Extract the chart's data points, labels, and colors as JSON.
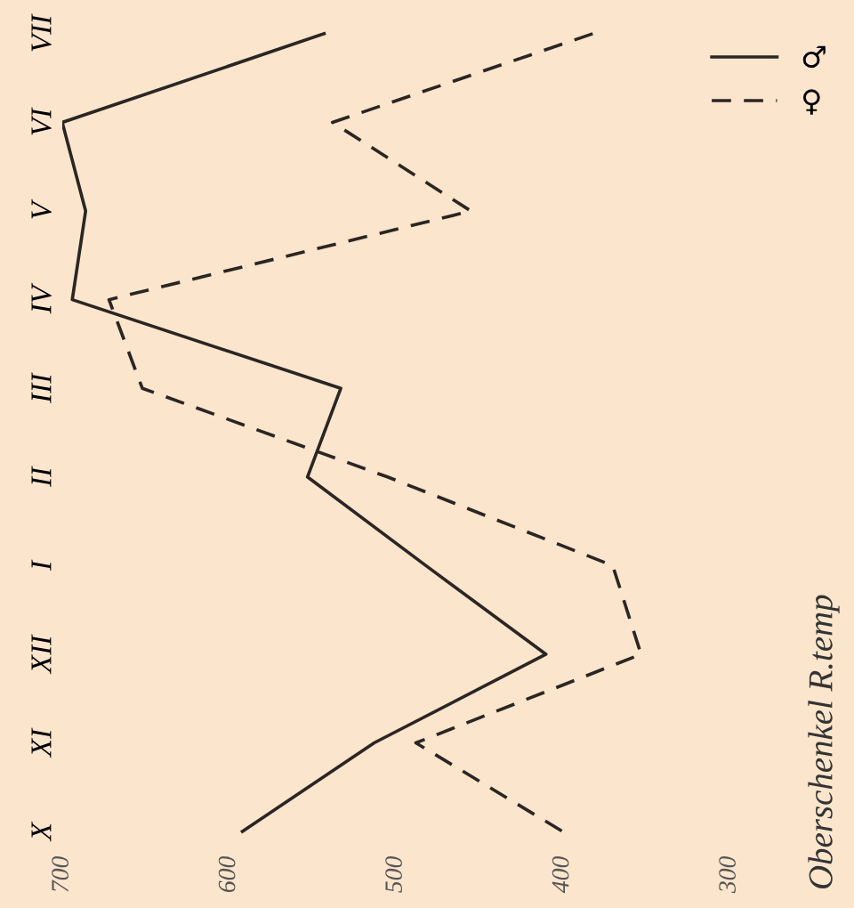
{
  "chart_data": {
    "type": "line",
    "orientation": "horizontal",
    "categories": [
      "VII",
      "VI",
      "V",
      "IV",
      "III",
      "II",
      "I",
      "XII",
      "XI",
      "X"
    ],
    "series": [
      {
        "name": "♂",
        "color": "#2b2623",
        "line_style": "solid",
        "values": [
          543,
          700,
          686,
          694,
          533,
          553,
          482,
          410,
          513,
          592
        ]
      },
      {
        "name": "♀",
        "color": "#2b2623",
        "line_style": "dashed",
        "values": [
          382,
          538,
          455,
          672,
          652,
          505,
          370,
          353,
          488,
          400
        ]
      }
    ],
    "xlim": [
      700,
      300
    ],
    "xticks": [
      700,
      600,
      500,
      400,
      300
    ],
    "legend_title": "Oberschenkel R.temp",
    "legend": "right",
    "grid": false,
    "marker": "none"
  }
}
